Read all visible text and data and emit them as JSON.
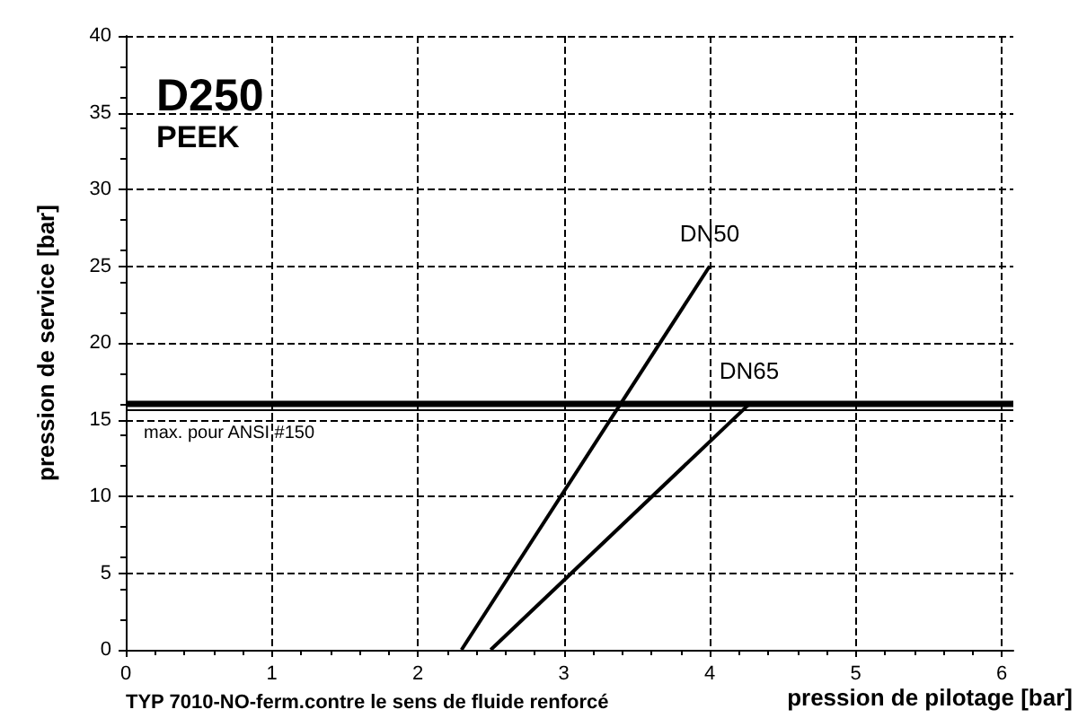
{
  "chart_data": {
    "type": "line",
    "title": "D250",
    "subtitle": "PEEK",
    "xlabel": "pression de pilotage [bar]",
    "ylabel": "pression de service [bar]",
    "annotations": [
      "TYP 7010-NO-ferm.contre le sens de fluide renforcé"
    ],
    "series": [
      {
        "name": "DN50",
        "color": "#000000",
        "x": [
          2.3,
          4
        ],
        "values": [
          0,
          25
        ]
      },
      {
        "name": "DN65",
        "color": "#000000",
        "x": [
          2.5,
          4.27
        ],
        "values": [
          0,
          16
        ]
      }
    ],
    "ref_lines": [
      {
        "axis": "y",
        "value": 16,
        "label": null,
        "color": "#000000",
        "line_style": "solid"
      },
      {
        "axis": "y",
        "value": 15.6,
        "label": "max. pour ANSI #150",
        "color": "#000000",
        "line_style": "solid"
      }
    ],
    "xlim": [
      0,
      6.08
    ],
    "xticks": [
      0,
      1,
      2,
      3,
      4,
      5,
      6
    ],
    "ylim": [
      0,
      40
    ],
    "yticks": [
      0,
      5,
      10,
      15,
      20,
      25,
      30,
      35,
      40
    ],
    "grid": true,
    "legend": false,
    "marker": "none",
    "line_style": "solid"
  }
}
